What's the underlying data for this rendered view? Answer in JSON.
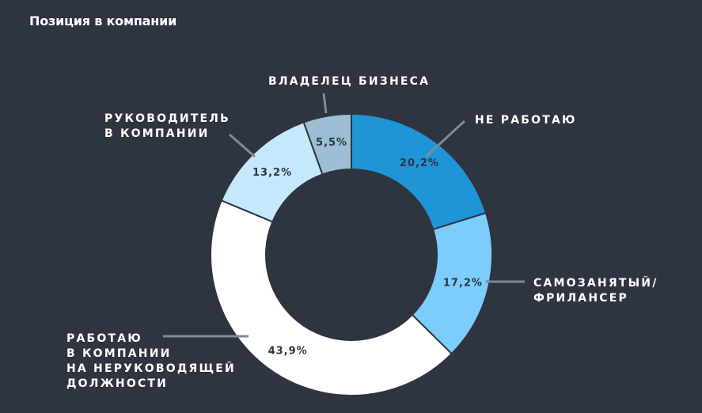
{
  "page": {
    "title": "Позиция в компании"
  },
  "chart_data": {
    "type": "pie",
    "variant": "donut",
    "title": "",
    "slices": [
      {
        "value": 20.2,
        "value_label": "20,2%",
        "label_lines": [
          "НЕ РАБОТАЮ"
        ],
        "color": "#1f95d8"
      },
      {
        "value": 17.2,
        "value_label": "17,2%",
        "label_lines": [
          "САМОЗАНЯТЫЙ/",
          "ФРИЛАНСЕР"
        ],
        "color": "#7ccdfb"
      },
      {
        "value": 43.9,
        "value_label": "43,9%",
        "label_lines": [
          "РАБОТАЮ",
          "В КОМПАНИИ",
          "НА НЕРУКОВОДЯЩЕЙ",
          "ДОЛЖНОСТИ"
        ],
        "color": "#ffffff"
      },
      {
        "value": 13.2,
        "value_label": "13,2%",
        "label_lines": [
          "РУКОВОДИТЕЛЬ",
          "В КОМПАНИИ"
        ],
        "color": "#c6e8fd"
      },
      {
        "value": 5.5,
        "value_label": "5,5%",
        "label_lines": [
          "ВЛАДЕЛЕЦ БИЗНЕСА"
        ],
        "color": "#9dbfd5"
      }
    ],
    "legend": "none",
    "colors": {
      "background": "#2f3441",
      "leader": "#7d8a9b",
      "divider": "#2f3441"
    }
  }
}
